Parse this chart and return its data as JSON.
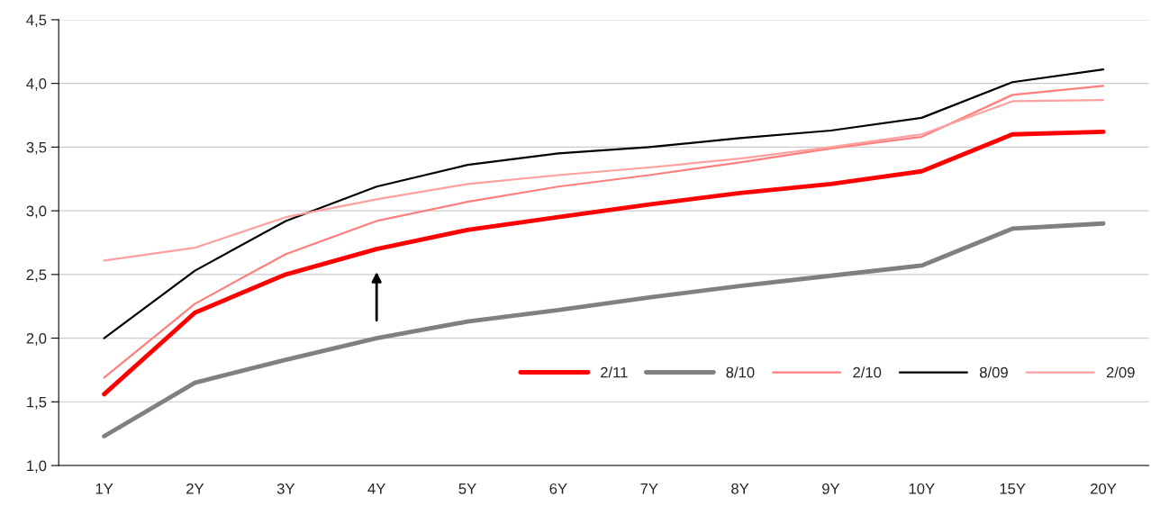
{
  "chart_data": {
    "type": "line",
    "categories": [
      "1Y",
      "2Y",
      "3Y",
      "4Y",
      "5Y",
      "6Y",
      "7Y",
      "8Y",
      "9Y",
      "10Y",
      "15Y",
      "20Y"
    ],
    "series": [
      {
        "name": "2/11",
        "color": "#ff0000",
        "values": [
          1.56,
          2.2,
          2.5,
          2.7,
          2.85,
          2.95,
          3.05,
          3.14,
          3.21,
          3.31,
          3.6,
          3.62
        ]
      },
      {
        "name": "8/10",
        "color": "#808080",
        "values": [
          1.23,
          1.65,
          1.83,
          2.0,
          2.13,
          2.22,
          2.32,
          2.41,
          2.49,
          2.57,
          2.86,
          2.9
        ]
      },
      {
        "name": "2/10",
        "color": "#ff7f7f",
        "values": [
          1.69,
          2.27,
          2.66,
          2.92,
          3.07,
          3.19,
          3.28,
          3.38,
          3.49,
          3.58,
          3.91,
          3.98
        ]
      },
      {
        "name": "8/09",
        "color": "#000000",
        "values": [
          2.0,
          2.53,
          2.92,
          3.19,
          3.36,
          3.45,
          3.5,
          3.57,
          3.63,
          3.73,
          4.01,
          4.11
        ]
      },
      {
        "name": "2/09",
        "color": "#ffa0a0",
        "values": [
          2.61,
          2.71,
          2.95,
          3.09,
          3.21,
          3.28,
          3.34,
          3.41,
          3.5,
          3.6,
          3.86,
          3.87
        ]
      }
    ],
    "ylim": [
      1.0,
      4.5
    ],
    "yticks": [
      {
        "value": 1.0,
        "label": "1,0"
      },
      {
        "value": 1.5,
        "label": "1,5"
      },
      {
        "value": 2.0,
        "label": "2,0"
      },
      {
        "value": 2.5,
        "label": "2,5"
      },
      {
        "value": 3.0,
        "label": "3,0"
      },
      {
        "value": 3.5,
        "label": "3,5"
      },
      {
        "value": 4.0,
        "label": "4,0"
      },
      {
        "value": 4.5,
        "label": "4,5"
      }
    ],
    "grid": "y",
    "legend": "bottom right",
    "marker": "none",
    "line_style": "solid"
  }
}
